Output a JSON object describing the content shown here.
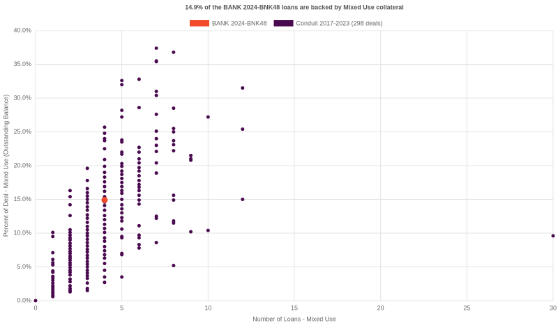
{
  "chart_data": {
    "type": "scatter",
    "title": "14.9% of the BANK 2024-BNK48 loans are backed by Mixed Use collateral",
    "x_label": "Number of Loans - Mixed Use",
    "y_label": "Percent of Deal - Mixed Use (Outstanding Balance)",
    "xlim": [
      0,
      30
    ],
    "xticks": [
      0,
      5,
      10,
      15,
      20,
      25,
      30
    ],
    "ylim": [
      0,
      40
    ],
    "yticks": [
      {
        "value": 0,
        "label": "0.0%"
      },
      {
        "value": 5,
        "label": "5.0%"
      },
      {
        "value": 10,
        "label": "10.0%"
      },
      {
        "value": 15,
        "label": "15.0%"
      },
      {
        "value": 20,
        "label": "20.0%"
      },
      {
        "value": 25,
        "label": "25.0%"
      },
      {
        "value": 30,
        "label": "30.0%"
      },
      {
        "value": 35,
        "label": "35.0%"
      },
      {
        "value": 40,
        "label": "40.0%"
      }
    ],
    "grid": true,
    "series": [
      {
        "name": "BANK 2024-BNK48",
        "color": "#f24a2b",
        "x": [
          4
        ],
        "y": [
          14.9
        ]
      },
      {
        "name": "Conduit 2017-2023 (298 deals)",
        "color": "#4a0a4f",
        "x": [
          0,
          1,
          1,
          1,
          1,
          1,
          1,
          1,
          1,
          1,
          1,
          1,
          1,
          1,
          1,
          1,
          1,
          1,
          1,
          1,
          2,
          2,
          2,
          2,
          2,
          2,
          2,
          2,
          2,
          2,
          2,
          2,
          2,
          2,
          2,
          2,
          2,
          2,
          2,
          2,
          2,
          2,
          2,
          2,
          2,
          2,
          2,
          2,
          2,
          3,
          3,
          3,
          3,
          3,
          3,
          3,
          3,
          3,
          3,
          3,
          3,
          3,
          3,
          3,
          3,
          3,
          3,
          3,
          3,
          3,
          3,
          3,
          3,
          3,
          3,
          3,
          3,
          3,
          3,
          3,
          3,
          3,
          4,
          4,
          4,
          4,
          4,
          4,
          4,
          4,
          4,
          4,
          4,
          4,
          4,
          4,
          4,
          4,
          4,
          4,
          4,
          4,
          4,
          4,
          4,
          4,
          4,
          4,
          4,
          4,
          4,
          4,
          4,
          5,
          5,
          5,
          5,
          5,
          5,
          5,
          5,
          5,
          5,
          5,
          5,
          5,
          5,
          5,
          5,
          5,
          5,
          5,
          5,
          5,
          5,
          5,
          5,
          5,
          5,
          5,
          5,
          5,
          6,
          6,
          6,
          6,
          6,
          6,
          6,
          6,
          6,
          6,
          6,
          6,
          6,
          6,
          6,
          6,
          6,
          6,
          6,
          6,
          6,
          7,
          7,
          7,
          7,
          7,
          7,
          7,
          7,
          7,
          7,
          7,
          7,
          7,
          7,
          7,
          8,
          8,
          8,
          8,
          8,
          8,
          8,
          8,
          8,
          8,
          8,
          8,
          9,
          9,
          9,
          9,
          10,
          10,
          12,
          12,
          12,
          30
        ],
        "y": [
          0.0,
          10.1,
          9.5,
          7.1,
          6.1,
          5.6,
          5.3,
          4.4,
          4.2,
          3.6,
          3.3,
          3.0,
          2.6,
          2.2,
          1.9,
          1.6,
          1.3,
          1.1,
          0.8,
          0.6,
          16.3,
          15.4,
          14.2,
          12.6,
          10.5,
          10.1,
          9.7,
          9.3,
          9.0,
          8.5,
          8.1,
          7.7,
          7.3,
          7.0,
          6.6,
          6.3,
          6.0,
          5.6,
          5.3,
          4.9,
          4.5,
          4.2,
          3.8,
          3.2,
          2.8,
          2.2,
          1.8,
          1.5,
          1.3,
          19.6,
          17.8,
          16.6,
          16.0,
          15.5,
          15.0,
          14.5,
          13.9,
          13.4,
          12.7,
          12.2,
          11.6,
          11.0,
          10.5,
          10.0,
          9.6,
          9.1,
          8.6,
          8.1,
          7.6,
          7.2,
          6.7,
          6.3,
          5.8,
          5.4,
          5.0,
          4.5,
          4.1,
          3.7,
          3.3,
          2.6,
          1.8,
          1.5,
          25.7,
          24.8,
          24.0,
          23.7,
          22.5,
          20.9,
          19.9,
          19.0,
          18.3,
          17.6,
          16.9,
          16.2,
          15.4,
          14.6,
          14.1,
          13.4,
          12.6,
          12.0,
          11.3,
          10.7,
          10.1,
          9.3,
          8.8,
          8.0,
          7.4,
          6.8,
          6.3,
          5.5,
          4.5,
          3.5,
          2.7,
          32.6,
          32.0,
          28.2,
          27.2,
          23.8,
          23.5,
          22.0,
          21.7,
          20.3,
          19.9,
          19.2,
          18.7,
          18.1,
          17.5,
          16.9,
          16.3,
          15.9,
          15.0,
          14.2,
          13.6,
          13.0,
          12.3,
          11.8,
          10.6,
          9.5,
          9.3,
          7.0,
          6.8,
          3.5,
          32.8,
          28.6,
          22.7,
          22.0,
          21.0,
          20.4,
          19.7,
          19.2,
          18.5,
          17.8,
          17.2,
          16.8,
          16.3,
          15.6,
          14.9,
          14.3,
          11.1,
          9.7,
          9.3,
          8.3,
          7.8,
          37.4,
          35.5,
          35.4,
          31.0,
          30.4,
          27.6,
          25.1,
          24.0,
          23.0,
          22.1,
          20.4,
          18.9,
          12.5,
          12.2,
          8.6,
          36.8,
          28.5,
          25.5,
          25.0,
          23.7,
          23.1,
          22.2,
          15.6,
          14.9,
          11.8,
          11.5,
          5.2,
          21.5,
          21.0,
          20.8,
          10.2,
          27.2,
          10.4,
          31.5,
          25.4,
          15.0,
          9.6
        ]
      }
    ]
  }
}
